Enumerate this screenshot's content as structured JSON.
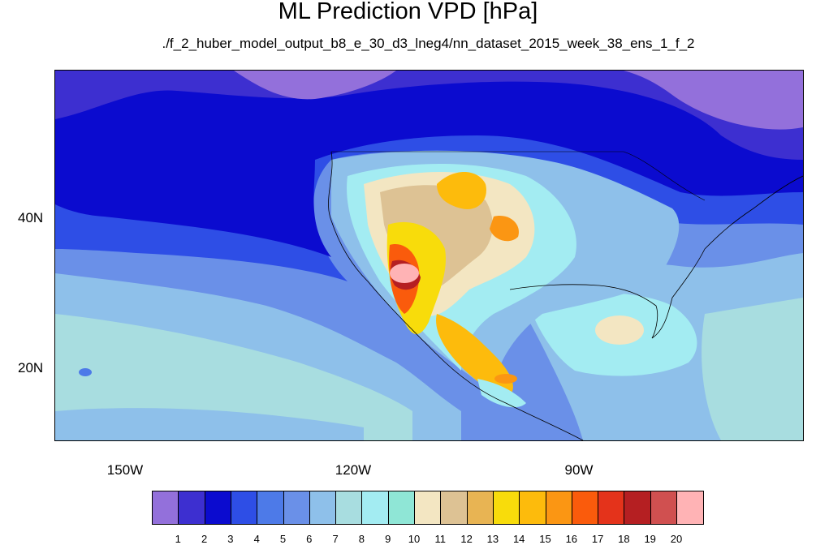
{
  "title": "ML Prediction VPD [hPa]",
  "subtitle": "./f_2_huber_model_output_b8_e_30_d3_lneg4/nn_dataset_2015_week_38_ens_1_f_2",
  "lat_labels": [
    "40N",
    "20N"
  ],
  "lon_labels": [
    "150W",
    "120W",
    "90W"
  ],
  "colorbar": {
    "colors": [
      "#9370db",
      "#3d2fd0",
      "#0b0bcf",
      "#2e4ee6",
      "#4d7ae8",
      "#6a90e8",
      "#8ec0ea",
      "#a8dde0",
      "#a3ecf2",
      "#8fe6d6",
      "#f3e6c2",
      "#ddc294",
      "#e8b453",
      "#f8dc0b",
      "#fdbb0c",
      "#fb9613",
      "#fa5b0c",
      "#e4331b",
      "#b51f22",
      "#d05050",
      "#ffb3b5"
    ],
    "labels": [
      "1",
      "2",
      "3",
      "4",
      "5",
      "6",
      "7",
      "8",
      "9",
      "10",
      "11",
      "12",
      "13",
      "14",
      "15",
      "16",
      "17",
      "18",
      "19",
      "20"
    ]
  }
}
